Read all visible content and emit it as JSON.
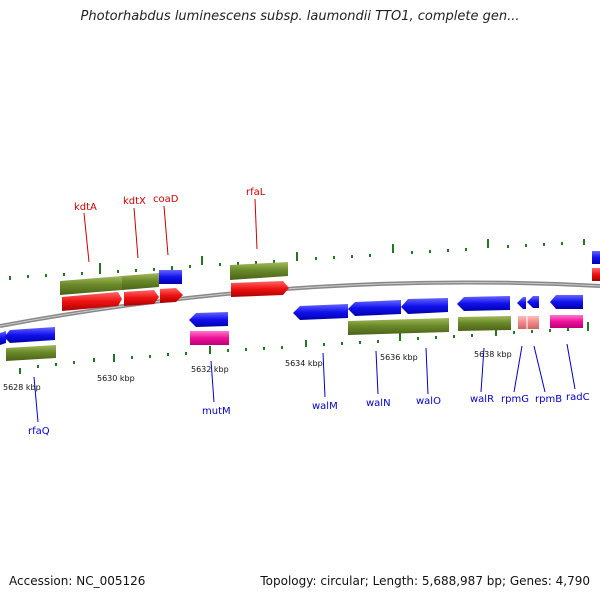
{
  "header": {
    "title": "Photorhabdus luminescens subsp. laumondii TTO1, complete gen..."
  },
  "footer": {
    "accession": "Accession: NC_005126",
    "summary": "Topology: circular; Length: 5,688,987 bp; Genes: 4,790"
  },
  "colors": {
    "forward_gene_label": "#cc0000",
    "reverse_gene_label": "#0000cc",
    "cds_red": "#ee1111",
    "cds_blue": "#1111ee",
    "gene_olive": "#6b8a2a",
    "rna_magenta": "#ee1199",
    "rna_salmon": "#ee8888",
    "gc_tick": "#227722",
    "backbone": "#888888"
  },
  "scale": {
    "ticks": [
      "5628 kbp",
      "5630 kbp",
      "5632 kbp",
      "5634 kbp",
      "5636 kbp",
      "5638 kbp"
    ]
  },
  "genes_top": [
    "kdtA",
    "kdtX",
    "coaD",
    "rfaL"
  ],
  "genes_bottom": [
    "rfaQ",
    "mutM",
    "walM",
    "walN",
    "walO",
    "walR",
    "rpmG",
    "rpmB",
    "radC"
  ]
}
